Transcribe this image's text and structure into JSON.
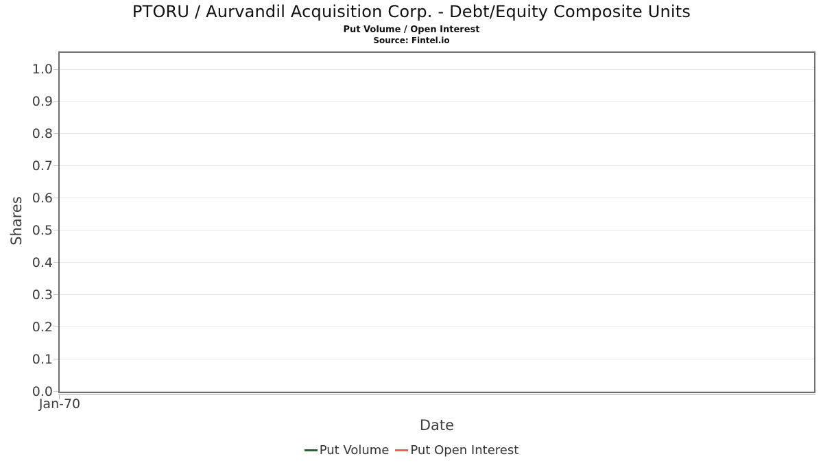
{
  "header": {
    "title": "PTORU / Aurvandil Acquisition Corp. - Debt/Equity Composite Units",
    "subtitle": "Put Volume / Open Interest",
    "source": "Source: Fintel.io"
  },
  "chart_data": {
    "type": "line",
    "title": "PTORU / Aurvandil Acquisition Corp. - Debt/Equity Composite Units",
    "subtitle": "Put Volume / Open Interest",
    "source": "Source: Fintel.io",
    "xlabel": "Date",
    "ylabel": "Shares",
    "x_tick_labels": [
      "Jan-70"
    ],
    "y_tick_labels": [
      "0.0",
      "0.1",
      "0.2",
      "0.3",
      "0.4",
      "0.5",
      "0.6",
      "0.7",
      "0.8",
      "0.9",
      "1.0"
    ],
    "y_tick_values": [
      0,
      0.1,
      0.2,
      0.3,
      0.4,
      0.5,
      0.6,
      0.7,
      0.8,
      0.9,
      1.0
    ],
    "ylim": [
      0,
      1.05
    ],
    "grid": "horizontal",
    "legend_position": "bottom-center",
    "series": [
      {
        "name": "Put Volume",
        "color": "#2c5f35",
        "x": [],
        "values": []
      },
      {
        "name": "Put Open Interest",
        "color": "#f45b5b",
        "x": [],
        "values": []
      }
    ]
  },
  "colors": {
    "plot_border": "#6e6e6e",
    "gridline": "#e6e6e6",
    "tick_mark": "#c9c9c9",
    "axis_line": "#d2d2d2",
    "tick_text": "#3c3c3c",
    "axis_label_text": "#3d3d3d",
    "legend_text": "#333333"
  }
}
